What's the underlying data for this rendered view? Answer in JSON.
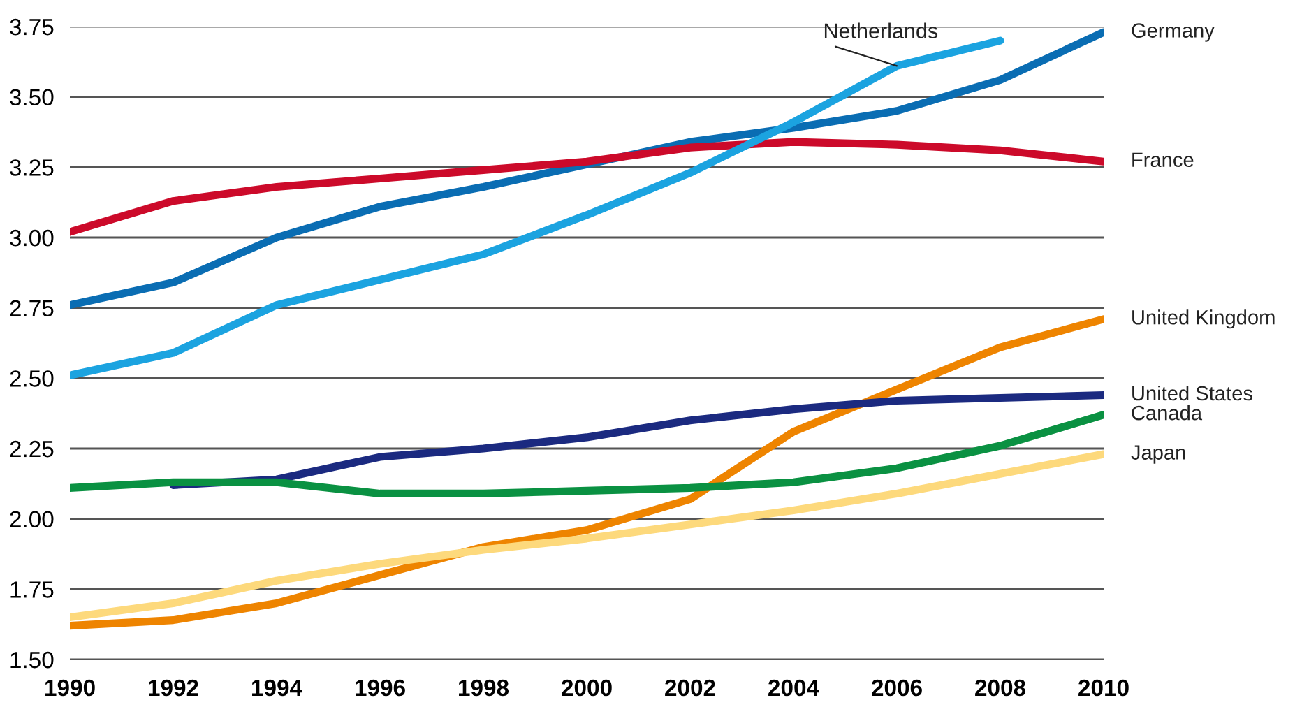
{
  "chart_data": {
    "type": "line",
    "x": [
      1990,
      1992,
      1994,
      1996,
      1998,
      2000,
      2002,
      2004,
      2006,
      2008,
      2010
    ],
    "xlim": [
      1990,
      2010
    ],
    "xticks": [
      1990,
      1992,
      1994,
      1996,
      1998,
      2000,
      2002,
      2004,
      2006,
      2008,
      2010
    ],
    "ylim": [
      1.5,
      3.75
    ],
    "yticks": [
      {
        "value": 1.5,
        "label": "1.50"
      },
      {
        "value": 1.75,
        "label": "1.75"
      },
      {
        "value": 2.0,
        "label": "2.00"
      },
      {
        "value": 2.25,
        "label": "2.25"
      },
      {
        "value": 2.5,
        "label": "2.50"
      },
      {
        "value": 2.75,
        "label": "2.75"
      },
      {
        "value": 3.0,
        "label": "3.00"
      },
      {
        "value": 3.25,
        "label": "3.25"
      },
      {
        "value": 3.5,
        "label": "3.50"
      },
      {
        "value": 3.75,
        "label": "3.75"
      }
    ],
    "grid": "y",
    "legend": false,
    "marker": "none",
    "line_style": "solid",
    "series": [
      {
        "name": "Germany",
        "color": "#0a6db3",
        "values": [
          2.76,
          2.84,
          3.0,
          3.11,
          3.18,
          3.26,
          3.34,
          3.39,
          3.45,
          3.56,
          3.73
        ]
      },
      {
        "name": "France",
        "color": "#cc0a2a",
        "values": [
          3.02,
          3.13,
          3.18,
          3.21,
          3.24,
          3.27,
          3.32,
          3.34,
          3.33,
          3.31,
          3.27
        ]
      },
      {
        "name": "Netherlands",
        "color": "#1ba3e0",
        "values": [
          2.51,
          2.59,
          2.76,
          2.85,
          2.94,
          3.08,
          3.23,
          3.41,
          3.61,
          3.7,
          null
        ]
      },
      {
        "name": "United Kingdom",
        "color": "#ee8400",
        "values": [
          1.62,
          1.64,
          1.7,
          1.8,
          1.9,
          1.96,
          2.07,
          2.31,
          2.46,
          2.61,
          2.71
        ]
      },
      {
        "name": "United States",
        "color": "#1b2a80",
        "values": [
          null,
          2.12,
          2.14,
          2.22,
          2.25,
          2.29,
          2.35,
          2.39,
          2.42,
          2.43,
          2.44
        ]
      },
      {
        "name": "Canada",
        "color": "#0a9142",
        "values": [
          2.11,
          2.13,
          2.13,
          2.09,
          2.09,
          2.1,
          2.11,
          2.13,
          2.18,
          2.26,
          2.37
        ]
      },
      {
        "name": "Japan",
        "color": "#fdd97c",
        "values": [
          1.65,
          1.7,
          1.78,
          1.84,
          1.89,
          1.93,
          1.98,
          2.03,
          2.09,
          2.16,
          2.23
        ]
      }
    ]
  }
}
